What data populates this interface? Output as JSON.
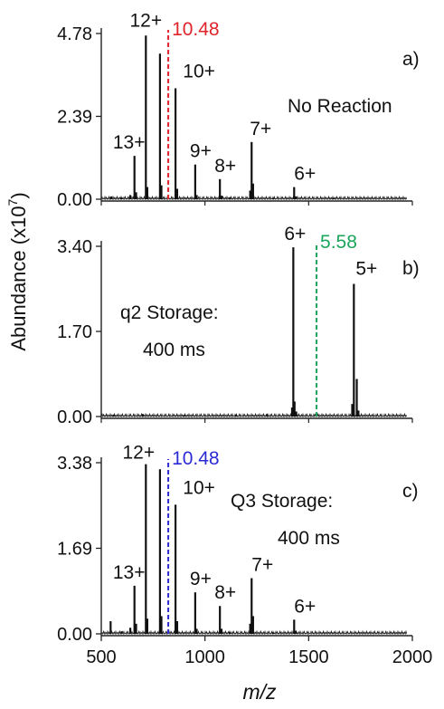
{
  "axes": {
    "ylabel": "Abundance (x10",
    "ylabel_exp": "7",
    "ylabel_close": ")",
    "xlabel": "m/z",
    "xlim": [
      500,
      2000
    ],
    "xticks": [
      "500",
      "1000",
      "1500",
      "2000"
    ],
    "xtick_values": [
      500,
      1000,
      1500,
      2000
    ]
  },
  "chart_data": [
    {
      "type": "line",
      "panel_label": "a)",
      "notes": [
        "No Reaction"
      ],
      "ylim": [
        0,
        4.78
      ],
      "yticks": [
        "0.00",
        "2.39",
        "4.78"
      ],
      "ytick_values": [
        0,
        2.39,
        4.78
      ],
      "marker": {
        "x": 823,
        "label": "10.48",
        "color": "#e0242a"
      },
      "peaks": [
        {
          "mz": 548,
          "y": 0.08
        },
        {
          "mz": 598,
          "y": 0.05
        },
        {
          "mz": 640,
          "y": 0.12
        },
        {
          "mz": 660,
          "y": 1.25
        },
        {
          "mz": 668,
          "y": 0.2
        },
        {
          "mz": 715,
          "y": 4.72
        },
        {
          "mz": 722,
          "y": 0.35
        },
        {
          "mz": 783,
          "y": 4.2
        },
        {
          "mz": 790,
          "y": 0.4
        },
        {
          "mz": 858,
          "y": 3.2
        },
        {
          "mz": 866,
          "y": 0.3
        },
        {
          "mz": 953,
          "y": 1.0
        },
        {
          "mz": 960,
          "y": 0.12
        },
        {
          "mz": 1072,
          "y": 0.58
        },
        {
          "mz": 1080,
          "y": 0.1
        },
        {
          "mz": 1225,
          "y": 1.65
        },
        {
          "mz": 1232,
          "y": 0.45
        },
        {
          "mz": 1218,
          "y": 0.25
        },
        {
          "mz": 1430,
          "y": 0.35
        },
        {
          "mz": 1438,
          "y": 0.08
        },
        {
          "mz": 1120,
          "y": 0.05
        },
        {
          "mz": 1330,
          "y": 0.04
        },
        {
          "mz": 1620,
          "y": 0.03
        }
      ],
      "charge_labels": [
        {
          "text": "12+",
          "mz": 715
        },
        {
          "text": "13+",
          "mz": 660
        },
        {
          "text": "10+",
          "mz": 858
        },
        {
          "text": "9+",
          "mz": 953
        },
        {
          "text": "8+",
          "mz": 1072
        },
        {
          "text": "7+",
          "mz": 1225
        },
        {
          "text": "6+",
          "mz": 1430
        }
      ]
    },
    {
      "type": "line",
      "panel_label": "b)",
      "notes": [
        "q2 Storage:",
        "400 ms"
      ],
      "ylim": [
        0,
        3.4
      ],
      "yticks": [
        "0.00",
        "1.70",
        "3.40"
      ],
      "ytick_values": [
        0,
        1.7,
        3.4
      ],
      "marker": {
        "x": 1538,
        "label": "5.58",
        "color": "#1aa55a"
      },
      "peaks": [
        {
          "mz": 1420,
          "y": 0.18
        },
        {
          "mz": 1426,
          "y": 3.38
        },
        {
          "mz": 1432,
          "y": 0.3
        },
        {
          "mz": 1440,
          "y": 0.1
        },
        {
          "mz": 1710,
          "y": 0.25
        },
        {
          "mz": 1718,
          "y": 2.65
        },
        {
          "mz": 1732,
          "y": 0.75
        },
        {
          "mz": 1740,
          "y": 0.12
        },
        {
          "mz": 560,
          "y": 0.04
        },
        {
          "mz": 700,
          "y": 0.05
        },
        {
          "mz": 900,
          "y": 0.03
        },
        {
          "mz": 1150,
          "y": 0.04
        },
        {
          "mz": 1300,
          "y": 0.05
        }
      ],
      "charge_labels": [
        {
          "text": "6+",
          "mz": 1426
        },
        {
          "text": "5+",
          "mz": 1718
        }
      ]
    },
    {
      "type": "line",
      "panel_label": "c)",
      "notes": [
        "Q3 Storage:",
        "400 ms"
      ],
      "ylim": [
        0,
        3.38
      ],
      "yticks": [
        "0.00",
        "1.69",
        "3.38"
      ],
      "ytick_values": [
        0,
        1.69,
        3.38
      ],
      "marker": {
        "x": 823,
        "label": "10.48",
        "color": "#2b2bd6"
      },
      "peaks": [
        {
          "mz": 545,
          "y": 0.25
        },
        {
          "mz": 598,
          "y": 0.05
        },
        {
          "mz": 640,
          "y": 0.12
        },
        {
          "mz": 660,
          "y": 0.95
        },
        {
          "mz": 668,
          "y": 0.2
        },
        {
          "mz": 715,
          "y": 3.35
        },
        {
          "mz": 722,
          "y": 0.3
        },
        {
          "mz": 783,
          "y": 3.25
        },
        {
          "mz": 790,
          "y": 0.35
        },
        {
          "mz": 858,
          "y": 2.55
        },
        {
          "mz": 866,
          "y": 0.25
        },
        {
          "mz": 953,
          "y": 0.82
        },
        {
          "mz": 960,
          "y": 0.1
        },
        {
          "mz": 1072,
          "y": 0.55
        },
        {
          "mz": 1080,
          "y": 0.1
        },
        {
          "mz": 1225,
          "y": 1.1
        },
        {
          "mz": 1232,
          "y": 0.35
        },
        {
          "mz": 1218,
          "y": 0.2
        },
        {
          "mz": 1430,
          "y": 0.28
        },
        {
          "mz": 1438,
          "y": 0.06
        },
        {
          "mz": 1120,
          "y": 0.04
        },
        {
          "mz": 1330,
          "y": 0.03
        }
      ],
      "charge_labels": [
        {
          "text": "12+",
          "mz": 715
        },
        {
          "text": "13+",
          "mz": 660
        },
        {
          "text": "10+",
          "mz": 858
        },
        {
          "text": "9+",
          "mz": 953
        },
        {
          "text": "8+",
          "mz": 1072
        },
        {
          "text": "7+",
          "mz": 1225
        },
        {
          "text": "6+",
          "mz": 1430
        }
      ]
    }
  ]
}
